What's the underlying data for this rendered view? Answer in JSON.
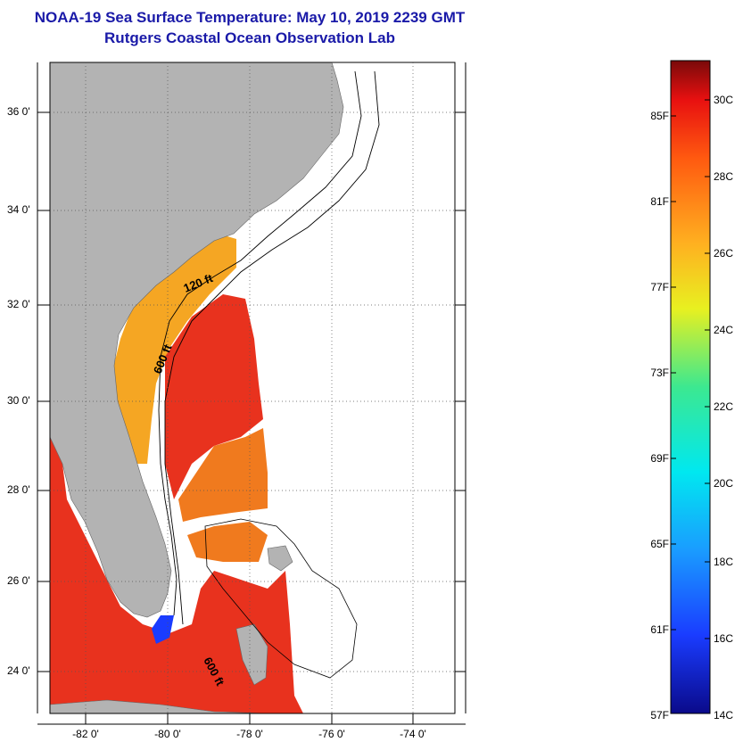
{
  "title_line1": "NOAA-19 Sea Surface Temperature:  May 10, 2019 2239 GMT",
  "title_line2": "Rutgers Coastal Ocean Observation Lab",
  "lat_labels": [
    "36 0'",
    "34 0'",
    "32 0'",
    "30 0'",
    "28 0'",
    "26 0'",
    "24 0'"
  ],
  "lon_labels": [
    "-82 0'",
    "-80 0'",
    "-78 0'",
    "-76 0'",
    "-74 0'"
  ],
  "isobath_labels": [
    "120 ft",
    "600 ft",
    "600 ft"
  ],
  "colorbar_f": [
    "85F",
    "81F",
    "77F",
    "73F",
    "69F",
    "65F",
    "61F",
    "57F"
  ],
  "colorbar_c": [
    "30C",
    "28C",
    "26C",
    "24C",
    "22C",
    "20C",
    "18C",
    "16C",
    "14C"
  ],
  "colors": {
    "land": "#b3b3b3",
    "title": "#1a1aa8",
    "sst_warm": "#e8321e",
    "sst_mid": "#f07a1e",
    "sst_cool": "#f5a623"
  }
}
